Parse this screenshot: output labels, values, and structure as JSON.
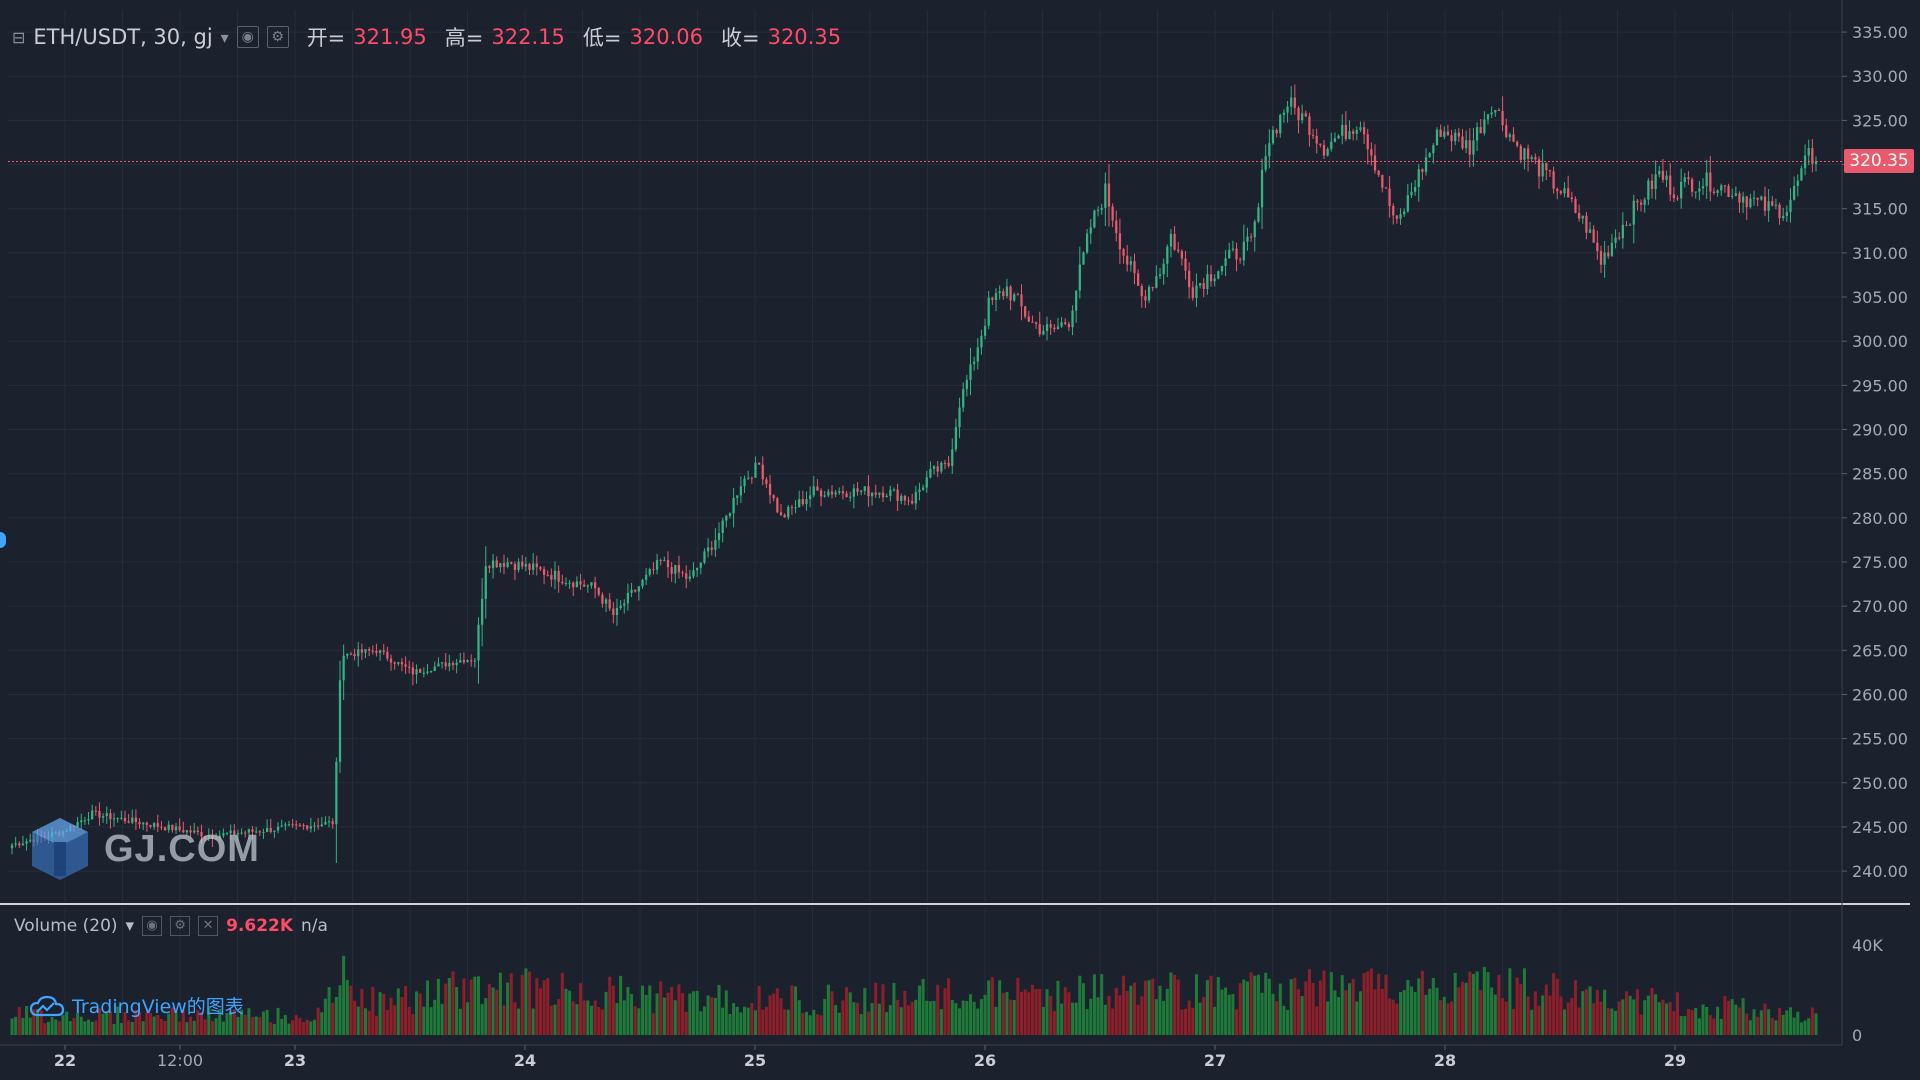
{
  "legend": {
    "collapse_icon": "square-minus-icon",
    "symbol": "ETH/USDT, 30, gj",
    "dropdown_icon": "caret-down-icon",
    "open_label": "开=",
    "open_value": "321.95",
    "high_label": "高=",
    "high_value": "322.15",
    "low_label": "低=",
    "low_value": "320.06",
    "close_label": "收=",
    "close_value": "320.35"
  },
  "current_price_tag": "320.35",
  "volume_legend": {
    "title": "Volume (20)",
    "value": "9.622K",
    "ma_value": "n/a"
  },
  "watermark_text": "GJ.COM",
  "tv_brand": "TradingView的图表",
  "colors": {
    "background": "#1b212d",
    "grid": "#262d3a",
    "up": "#35b383",
    "down": "#e85a6c",
    "vol_up": "#1f7a3a",
    "vol_down": "#8c1f2a",
    "axis_text": "#a3aab5",
    "accent": "#3fa5ff"
  },
  "chart_data": {
    "type": "candlestick",
    "symbol": "ETH/USDT",
    "interval": "30",
    "x_tick_labels": [
      "22",
      "12:00",
      "23",
      "24",
      "25",
      "26",
      "27",
      "28",
      "29"
    ],
    "price_axis_labels": [
      "335.00",
      "330.00",
      "325.00",
      "320.00",
      "315.00",
      "310.00",
      "305.00",
      "300.00",
      "295.00",
      "290.00",
      "285.00",
      "280.00",
      "275.00",
      "270.00",
      "265.00",
      "260.00",
      "255.00",
      "250.00",
      "245.00",
      "240.00"
    ],
    "price_range": [
      236.5,
      337.5
    ],
    "volume_axis_labels": [
      "40K",
      "0"
    ],
    "volume_range": [
      0,
      52000
    ],
    "current_price": 320.35,
    "close_path": [
      [
        0,
        243
      ],
      [
        14,
        244.5
      ],
      [
        22,
        246.5
      ],
      [
        55,
        244
      ],
      [
        88,
        245.5
      ],
      [
        89,
        252
      ],
      [
        90,
        262
      ],
      [
        91,
        264.5
      ],
      [
        100,
        265
      ],
      [
        110,
        262.5
      ],
      [
        124,
        264
      ],
      [
        127,
        264
      ],
      [
        130,
        275
      ],
      [
        136,
        275
      ],
      [
        145,
        274
      ],
      [
        160,
        272
      ],
      [
        165,
        269
      ],
      [
        178,
        275
      ],
      [
        186,
        273
      ],
      [
        195,
        279
      ],
      [
        200,
        284
      ],
      [
        205,
        286
      ],
      [
        211,
        280
      ],
      [
        220,
        283
      ],
      [
        240,
        283
      ],
      [
        247,
        282
      ],
      [
        252,
        285
      ],
      [
        257,
        286
      ],
      [
        260,
        293
      ],
      [
        264,
        298
      ],
      [
        268,
        304
      ],
      [
        273,
        306
      ],
      [
        280,
        302
      ],
      [
        285,
        301
      ],
      [
        290,
        302.5
      ],
      [
        292,
        306
      ],
      [
        296,
        313
      ],
      [
        300,
        317
      ],
      [
        305,
        310
      ],
      [
        310,
        305
      ],
      [
        315,
        308
      ],
      [
        318,
        312
      ],
      [
        324,
        306
      ],
      [
        330,
        308
      ],
      [
        336,
        310
      ],
      [
        340,
        311
      ],
      [
        342,
        315
      ],
      [
        344,
        322
      ],
      [
        350,
        327
      ],
      [
        355,
        325
      ],
      [
        360,
        322
      ],
      [
        370,
        325
      ],
      [
        375,
        319
      ],
      [
        380,
        313
      ],
      [
        385,
        318
      ],
      [
        392,
        324
      ],
      [
        400,
        322
      ],
      [
        406,
        327
      ],
      [
        413,
        322
      ],
      [
        418,
        320
      ],
      [
        425,
        317
      ],
      [
        432,
        313
      ],
      [
        436,
        309
      ],
      [
        440,
        312
      ],
      [
        447,
        316
      ],
      [
        452,
        319
      ],
      [
        456,
        317
      ],
      [
        460,
        318
      ],
      [
        466,
        318
      ],
      [
        472,
        317
      ],
      [
        477,
        316
      ],
      [
        482,
        315
      ],
      [
        487,
        315
      ],
      [
        492,
        320
      ],
      [
        493,
        321
      ],
      [
        495,
        320.35
      ]
    ],
    "volume_profile": [
      [
        0,
        9000
      ],
      [
        85,
        8500
      ],
      [
        90,
        26000
      ],
      [
        100,
        14000
      ],
      [
        130,
        22000
      ],
      [
        200,
        15000
      ],
      [
        265,
        18000
      ],
      [
        292,
        19000
      ],
      [
        345,
        20000
      ],
      [
        406,
        22000
      ],
      [
        460,
        13000
      ],
      [
        495,
        9622
      ]
    ]
  }
}
